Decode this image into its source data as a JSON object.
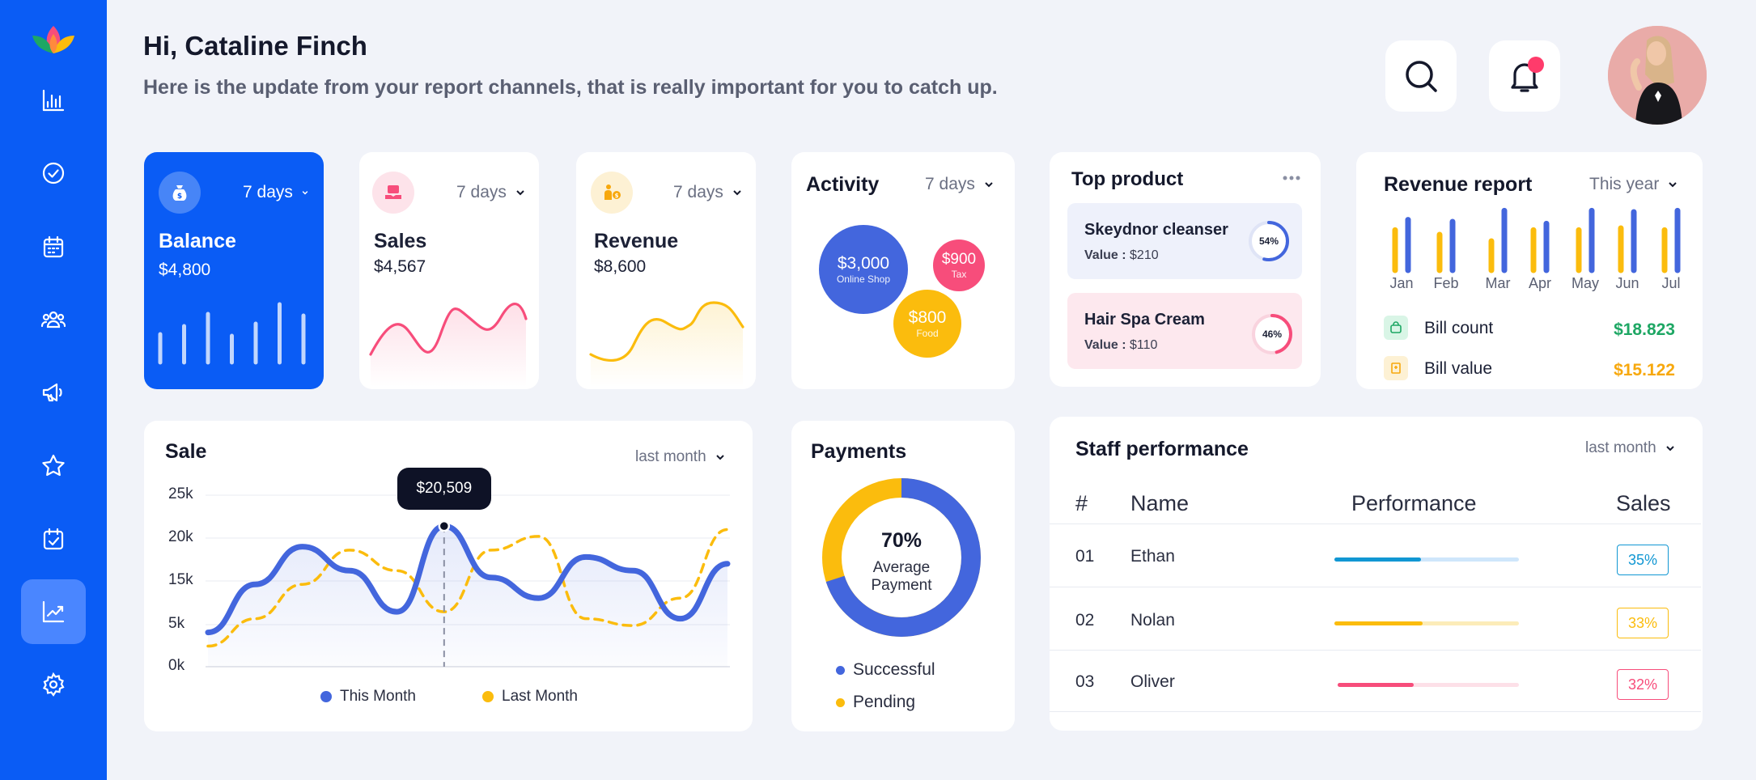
{
  "colors": {
    "primary": "#0a5cf5",
    "blue": "#4366dd",
    "yellow": "#fbbc0d",
    "pink": "#f74d7b",
    "green": "#1ea764",
    "orange": "#f7a80d"
  },
  "sidebar": {
    "logo": "lotus-logo",
    "items": [
      {
        "name": "reports",
        "icon": "bar-chart-icon"
      },
      {
        "name": "tasks",
        "icon": "check-circle-icon"
      },
      {
        "name": "calendar",
        "icon": "calendar-icon"
      },
      {
        "name": "team",
        "icon": "users-icon"
      },
      {
        "name": "campaigns",
        "icon": "megaphone-icon"
      },
      {
        "name": "favorites",
        "icon": "star-icon"
      },
      {
        "name": "schedule",
        "icon": "calendar-check-icon"
      },
      {
        "name": "analytics",
        "icon": "trend-icon",
        "active": true
      },
      {
        "name": "settings",
        "icon": "gear-icon"
      }
    ]
  },
  "header": {
    "greeting": "Hi, Cataline Finch",
    "subtitle": "Here is the update from your report channels, that is really important for you to catch up."
  },
  "balance": {
    "period": "7 days",
    "title": "Balance",
    "value": "$4,800",
    "bars": [
      0.35,
      0.45,
      0.6,
      0.33,
      0.48,
      0.72,
      0.58
    ]
  },
  "sales": {
    "period": "7 days",
    "title": "Sales",
    "value": "$4,567"
  },
  "revenue": {
    "period": "7 days",
    "title": "Revenue",
    "value": "$8,600"
  },
  "activity": {
    "title": "Activity",
    "period": "7 days",
    "bubbles": [
      {
        "value": "$3,000",
        "label": "Online Shop",
        "color": "#4366dd"
      },
      {
        "value": "$900",
        "label": "Tax",
        "color": "#f74d7b"
      },
      {
        "value": "$800",
        "label": "Food",
        "color": "#fbbc0d"
      }
    ]
  },
  "top_product": {
    "title": "Top product",
    "value_label": "Value :",
    "items": [
      {
        "name": "Skeydnor cleanser",
        "value": "$210",
        "percent": "54%",
        "progress": 0.54
      },
      {
        "name": "Hair Spa Cream",
        "value": "$110",
        "percent": "46%",
        "progress": 0.46
      }
    ]
  },
  "revenue_report": {
    "title": "Revenue report",
    "period": "This year",
    "months": [
      "Jan",
      "Feb",
      "Mar",
      "Apr",
      "May",
      "Jun",
      "Jul"
    ],
    "series_yellow": [
      0.62,
      0.55,
      0.45,
      0.62,
      0.62,
      0.65,
      0.62
    ],
    "series_blue": [
      0.78,
      0.75,
      0.92,
      0.72,
      0.92,
      0.9,
      0.92
    ],
    "bill_count_label": "Bill count",
    "bill_count": "$18.823",
    "bill_value_label": "Bill value",
    "bill_value": "$15.122"
  },
  "sale_chart": {
    "title": "Sale",
    "period": "last month",
    "tooltip": "$20,509",
    "legend_this": "This Month",
    "legend_last": "Last Month"
  },
  "chart_data": {
    "type": "line",
    "yticks": [
      "25k",
      "20k",
      "15k",
      "5k",
      "0k"
    ],
    "ylim": [
      0,
      25
    ],
    "x": [
      0,
      1,
      2,
      3,
      4,
      5,
      6,
      7,
      8,
      9,
      10,
      11
    ],
    "series": [
      {
        "name": "This Month",
        "color": "#4366dd",
        "values": [
          5,
          12,
          17.5,
          14,
          8,
          20.5,
          13,
          10,
          16,
          14,
          7,
          15
        ]
      },
      {
        "name": "Last Month",
        "color": "#fbbc0d",
        "values": [
          3,
          7,
          12,
          17,
          14,
          8,
          17,
          19,
          7,
          6,
          10,
          20
        ]
      }
    ],
    "highlight": {
      "index": 5,
      "value": 20509
    }
  },
  "payments": {
    "title": "Payments",
    "percent": "70%",
    "label_line1": "Average",
    "label_line2": "Payment",
    "successful_fraction": 0.7,
    "legend": [
      "Successful",
      "Pending"
    ]
  },
  "staff": {
    "title": "Staff performance",
    "period": "last month",
    "headers": [
      "#",
      "Name",
      "Performance",
      "Sales"
    ],
    "rows": [
      {
        "num": "01",
        "name": "Ethan",
        "perf": 0.47,
        "sales": "35%",
        "color": "#1197d3",
        "light": "#cfe6fb"
      },
      {
        "num": "02",
        "name": "Nolan",
        "perf": 0.48,
        "sales": "33%",
        "color": "#fbbc0d",
        "light": "#fcecb9"
      },
      {
        "num": "03",
        "name": "Oliver",
        "perf": 0.42,
        "sales": "32%",
        "color": "#f74d7b",
        "light": "#fde0e8"
      }
    ]
  }
}
